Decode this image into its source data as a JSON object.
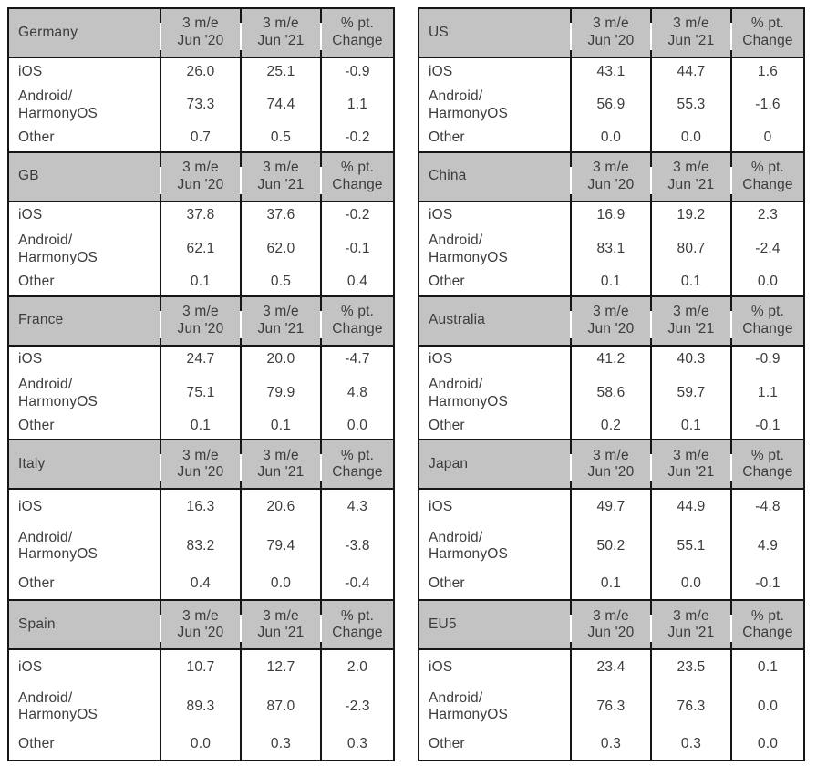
{
  "col_headers": [
    "3 m/e\nJun '20",
    "3 m/e\nJun '21",
    "% pt.\nChange"
  ],
  "tables": [
    {
      "region": "Germany",
      "rows": [
        {
          "label": "iOS",
          "values": [
            "26.0",
            "25.1",
            "-0.9"
          ]
        },
        {
          "label": "Android/\nHarmonyOS",
          "values": [
            "73.3",
            "74.4",
            "1.1"
          ]
        },
        {
          "label": "Other",
          "values": [
            "0.7",
            "0.5",
            "-0.2"
          ]
        }
      ]
    },
    {
      "region": "GB",
      "rows": [
        {
          "label": "iOS",
          "values": [
            "37.8",
            "37.6",
            "-0.2"
          ]
        },
        {
          "label": "Android/\nHarmonyOS",
          "values": [
            "62.1",
            "62.0",
            "-0.1"
          ]
        },
        {
          "label": "Other",
          "values": [
            "0.1",
            "0.5",
            "0.4"
          ]
        }
      ]
    },
    {
      "region": "France",
      "rows": [
        {
          "label": "iOS",
          "values": [
            "24.7",
            "20.0",
            "-4.7"
          ]
        },
        {
          "label": "Android/\nHarmonyOS",
          "values": [
            "75.1",
            "79.9",
            "4.8"
          ]
        },
        {
          "label": "Other",
          "values": [
            "0.1",
            "0.1",
            "0.0"
          ]
        }
      ]
    },
    {
      "region": "Italy",
      "rows": [
        {
          "label": "iOS",
          "values": [
            "16.3",
            "20.6",
            "4.3"
          ]
        },
        {
          "label": "Android/\nHarmonyOS",
          "values": [
            "83.2",
            "79.4",
            "-3.8"
          ]
        },
        {
          "label": "Other",
          "values": [
            "0.4",
            "0.0",
            "-0.4"
          ]
        }
      ]
    },
    {
      "region": "Spain",
      "rows": [
        {
          "label": "iOS",
          "values": [
            "10.7",
            "12.7",
            "2.0"
          ]
        },
        {
          "label": "Android/\nHarmonyOS",
          "values": [
            "89.3",
            "87.0",
            "-2.3"
          ]
        },
        {
          "label": "Other",
          "values": [
            "0.0",
            "0.3",
            "0.3"
          ]
        }
      ]
    },
    {
      "region": "US",
      "rows": [
        {
          "label": "iOS",
          "values": [
            "43.1",
            "44.7",
            "1.6"
          ]
        },
        {
          "label": "Android/\nHarmonyOS",
          "values": [
            "56.9",
            "55.3",
            "-1.6"
          ]
        },
        {
          "label": "Other",
          "values": [
            "0.0",
            "0.0",
            "0"
          ]
        }
      ]
    },
    {
      "region": "China",
      "rows": [
        {
          "label": "iOS",
          "values": [
            "16.9",
            "19.2",
            "2.3"
          ]
        },
        {
          "label": "Android/\nHarmonyOS",
          "values": [
            "83.1",
            "80.7",
            "-2.4"
          ]
        },
        {
          "label": "Other",
          "values": [
            "0.1",
            "0.1",
            "0.0"
          ]
        }
      ]
    },
    {
      "region": "Australia",
      "rows": [
        {
          "label": "iOS",
          "values": [
            "41.2",
            "40.3",
            "-0.9"
          ]
        },
        {
          "label": "Android/\nHarmonyOS",
          "values": [
            "58.6",
            "59.7",
            "1.1"
          ]
        },
        {
          "label": "Other",
          "values": [
            "0.2",
            "0.1",
            "-0.1"
          ]
        }
      ]
    },
    {
      "region": "Japan",
      "rows": [
        {
          "label": "iOS",
          "values": [
            "49.7",
            "44.9",
            "-4.8"
          ]
        },
        {
          "label": "Android/\nHarmonyOS",
          "values": [
            "50.2",
            "55.1",
            "4.9"
          ]
        },
        {
          "label": "Other",
          "values": [
            "0.1",
            "0.0",
            "-0.1"
          ]
        }
      ]
    },
    {
      "region": "EU5",
      "rows": [
        {
          "label": "iOS",
          "values": [
            "23.4",
            "23.5",
            "0.1"
          ]
        },
        {
          "label": "Android/\nHarmonyOS",
          "values": [
            "76.3",
            "76.3",
            "0.0"
          ]
        },
        {
          "label": "Other",
          "values": [
            "0.3",
            "0.3",
            "0.0"
          ]
        }
      ]
    }
  ],
  "colors": {
    "header_bg": "#c3c3c3",
    "border": "#161616",
    "text": "#3c3c3c",
    "page_bg": "#ffffff"
  }
}
